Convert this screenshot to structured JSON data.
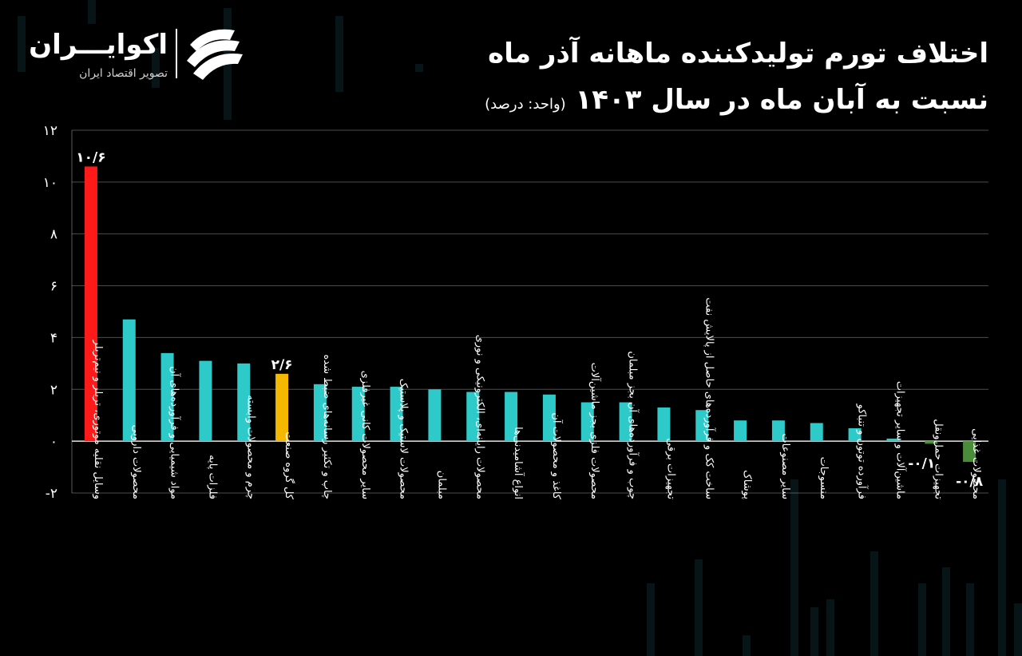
{
  "brand": {
    "name": "اکوایـــران",
    "tagline": "تصویر اقتصاد ایران"
  },
  "title": {
    "line1": "اختلاف تورم تولیدکننده ماهانه آذر ماه",
    "line2": "نسبت به آبان ماه در سال ۱۴۰۳",
    "unit": "(واحد: درصد)"
  },
  "colors": {
    "background": "#000000",
    "highlight_max": "#ff1a1a",
    "highlight_total": "#f5b800",
    "positive": "#2ec9c9",
    "negative": "#4a8c3a",
    "grid": "#ffffff"
  },
  "chart_data": {
    "type": "bar",
    "categories": [
      "وسایل نقلیه موتوری، تریلر و نیم‌تریلر",
      "محصولات دارویی",
      "مواد شیمیایی و فرآورده‌های آن",
      "فلزات پایه",
      "چرم و محصولات وابسته",
      "کل گروه صنعت",
      "چاپ و تکثیر رسانه‌های ضبط شده",
      "سایر محصولات کانی غیرفلزی",
      "محصولات لاستیک و پلاستیک",
      "مبلمان",
      "محصولات رایانه‌ای، الکترونیکی و نوری",
      "انواع آشامیدنی‌ها",
      "کاغذ و محصولات آن",
      "محصولات فلزی بجز ماشین‌آلات",
      "چوب و فرآورده‌های آن بجز مبلمان",
      "تجهیزات برقی",
      "ساخت کک و فرآورده‌های حاصل از پالایش نفت",
      "پوشاک",
      "سایر مصنوعات",
      "منسوجات",
      "فرآورده توتون و تنباکو",
      "ماشین‌آلات و سایر تجهیزات",
      "تجهیزات حمل‌ونقل",
      "محصولات غذایی"
    ],
    "values": [
      10.6,
      4.7,
      3.4,
      3.1,
      3.0,
      2.6,
      2.2,
      2.1,
      2.1,
      2.0,
      1.9,
      1.9,
      1.8,
      1.5,
      1.5,
      1.3,
      1.2,
      0.8,
      0.8,
      0.7,
      0.5,
      0.1,
      -0.1,
      -0.8
    ],
    "highlight_max_index": 0,
    "highlight_total_index": 5,
    "data_labels": [
      {
        "index": 0,
        "text": "۱۰/۶"
      },
      {
        "index": 5,
        "text": "۲/۶"
      },
      {
        "index": 22,
        "text": "-۰/۱"
      },
      {
        "index": 23,
        "text": "-۰/۸"
      }
    ],
    "y_ticks": [
      {
        "value": 12,
        "label": "۱۲"
      },
      {
        "value": 10,
        "label": "۱۰"
      },
      {
        "value": 8,
        "label": "۸"
      },
      {
        "value": 6,
        "label": "۶"
      },
      {
        "value": 4,
        "label": "۴"
      },
      {
        "value": 2,
        "label": "۲"
      },
      {
        "value": 0,
        "label": "۰"
      },
      {
        "value": -2,
        "label": "-۲"
      }
    ],
    "ylim": [
      -2,
      12
    ],
    "grid": true,
    "title": "اختلاف تورم تولیدکننده ماهانه آذر ماه نسبت به آبان ماه در سال ۱۴۰۳",
    "xlabel": "",
    "ylabel": ""
  }
}
